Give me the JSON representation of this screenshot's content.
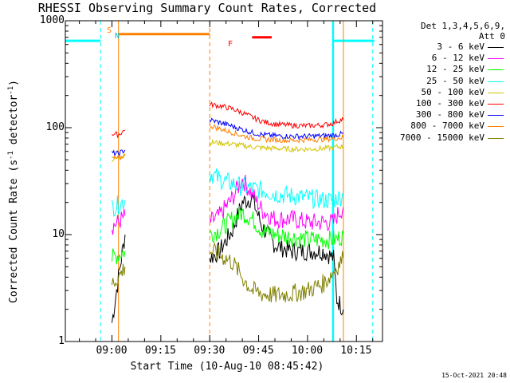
{
  "title": "RHESSI Observing Summary Count Rates, Corrected",
  "ylabel_main": "Corrected Count Rate (s",
  "ylabel_sup1": "-1",
  "ylabel_mid": " detector",
  "ylabel_sup2": "-1",
  "ylabel_end": ")",
  "xlabel": "Start Time (10-Aug-10 08:45:42)",
  "timestamp": "15-Oct-2021 20:48",
  "legend_header": [
    "Det 1,3,4,5,6,9,",
    "Att 0"
  ],
  "flags": {
    "s": "S",
    "n": "N",
    "f": "F"
  },
  "colors": {
    "black": "#000000",
    "magenta": "#ff00ff",
    "green": "#00ff00",
    "cyan": "#00ffff",
    "yellow": "#d4c400",
    "red": "#ff0000",
    "blue": "#0000ff",
    "orange": "#ff7f00",
    "olive": "#7f7f00"
  },
  "chart_data": {
    "type": "line",
    "y_scale": "log",
    "ylim": [
      1,
      1000
    ],
    "y_ticks": [
      "1",
      "10",
      "100",
      "1000"
    ],
    "x_range": [
      "08:45:42",
      "10:23"
    ],
    "x_ticks": [
      "09:00",
      "09:15",
      "09:30",
      "09:45",
      "10:00",
      "10:15"
    ],
    "series": [
      {
        "name": "3 - 6 keV",
        "color": "#000000",
        "x": [
          "09:00",
          "09:02",
          "09:04",
          "09:30",
          "09:33",
          "09:37",
          "09:40",
          "09:43",
          "09:46",
          "09:50",
          "09:55",
          "10:00",
          "10:05",
          "10:08",
          "10:09",
          "10:11"
        ],
        "y": [
          1.5,
          4,
          10,
          6,
          7,
          11,
          20,
          22,
          12,
          8,
          7,
          7,
          7,
          6,
          2.5,
          2
        ]
      },
      {
        "name": "6 - 12 keV",
        "color": "#ff00ff",
        "x": [
          "09:00",
          "09:02",
          "09:04",
          "09:30",
          "09:33",
          "09:37",
          "09:40",
          "09:43",
          "09:46",
          "09:50",
          "09:55",
          "10:00",
          "10:05",
          "10:08",
          "10:09",
          "10:11"
        ],
        "y": [
          12,
          13,
          15,
          13,
          15,
          22,
          33,
          24,
          17,
          14,
          14,
          13,
          13,
          13,
          15,
          18
        ]
      },
      {
        "name": "12 - 25 keV",
        "color": "#00ff00",
        "x": [
          "09:00",
          "09:02",
          "09:04",
          "09:30",
          "09:33",
          "09:37",
          "09:40",
          "09:43",
          "09:46",
          "09:50",
          "09:55",
          "10:00",
          "10:05",
          "10:08",
          "10:09",
          "10:11"
        ],
        "y": [
          6,
          6.5,
          7,
          10,
          11,
          14,
          16,
          14,
          11,
          10,
          9.5,
          9,
          9,
          9,
          9,
          10
        ]
      },
      {
        "name": "25 - 50 keV",
        "color": "#00ffff",
        "x": [
          "09:00",
          "09:02",
          "09:04",
          "09:30",
          "09:33",
          "09:37",
          "09:40",
          "09:43",
          "09:46",
          "09:50",
          "09:55",
          "10:00",
          "10:05",
          "10:08",
          "10:09",
          "10:11"
        ],
        "y": [
          18,
          19,
          21,
          38,
          33,
          30,
          28,
          27,
          26,
          24,
          23,
          22,
          21,
          21,
          22,
          23
        ]
      },
      {
        "name": "50 - 100 keV",
        "color": "#d4c400",
        "x": [
          "09:00",
          "09:02",
          "09:04",
          "09:30",
          "09:33",
          "09:37",
          "09:40",
          "09:43",
          "09:46",
          "09:50",
          "09:55",
          "10:00",
          "10:05",
          "10:08",
          "10:09",
          "10:11"
        ],
        "y": [
          50,
          52,
          56,
          73,
          72,
          70,
          68,
          66,
          65,
          64,
          63,
          63,
          64,
          65,
          66,
          67
        ]
      },
      {
        "name": "100 - 300 keV",
        "color": "#ff0000",
        "x": [
          "09:00",
          "09:02",
          "09:04",
          "09:30",
          "09:33",
          "09:37",
          "09:40",
          "09:43",
          "09:46",
          "09:50",
          "09:55",
          "10:00",
          "10:05",
          "10:08",
          "10:09",
          "10:11"
        ],
        "y": [
          88,
          86,
          95,
          165,
          160,
          150,
          138,
          125,
          115,
          108,
          105,
          104,
          106,
          110,
          115,
          120
        ]
      },
      {
        "name": "300 - 800 keV",
        "color": "#0000ff",
        "x": [
          "09:00",
          "09:02",
          "09:04",
          "09:30",
          "09:33",
          "09:37",
          "09:40",
          "09:43",
          "09:46",
          "09:50",
          "09:55",
          "10:00",
          "10:05",
          "10:08",
          "10:09",
          "10:11"
        ],
        "y": [
          58,
          57,
          62,
          118,
          112,
          103,
          96,
          90,
          86,
          84,
          83,
          83,
          84,
          85,
          86,
          88
        ]
      },
      {
        "name": "800 - 7000 keV",
        "color": "#ff7f00",
        "x": [
          "09:00",
          "09:02",
          "09:04",
          "09:30",
          "09:33",
          "09:37",
          "09:40",
          "09:43",
          "09:46",
          "09:50",
          "09:55",
          "10:00",
          "10:05",
          "10:08",
          "10:09",
          "10:11"
        ],
        "y": [
          52,
          51,
          56,
          105,
          98,
          90,
          84,
          80,
          78,
          77,
          76,
          77,
          78,
          79,
          80,
          81
        ]
      },
      {
        "name": "7000 - 15000 keV",
        "color": "#7f7f00",
        "x": [
          "09:00",
          "09:02",
          "09:04",
          "09:30",
          "09:33",
          "09:37",
          "09:40",
          "09:43",
          "09:46",
          "09:50",
          "09:55",
          "10:00",
          "10:05",
          "10:08",
          "10:09",
          "10:11"
        ],
        "y": [
          3.5,
          4,
          5,
          7,
          6.5,
          5.5,
          4,
          3,
          2.8,
          2.7,
          2.8,
          3,
          3.5,
          4.5,
          5,
          6
        ]
      }
    ],
    "vertical_markers": [
      {
        "kind": "saa",
        "color": "#00ffff",
        "x": [
          "08:56:30",
          "10:08",
          "10:20"
        ],
        "level": 650
      },
      {
        "kind": "night",
        "color": "#ff7f00",
        "x": [
          "09:02",
          "09:30",
          "10:11"
        ],
        "level": 750
      },
      {
        "kind": "flare",
        "color": "#ff0000",
        "x_range": [
          "09:43",
          "09:49"
        ],
        "level": 700
      }
    ]
  }
}
